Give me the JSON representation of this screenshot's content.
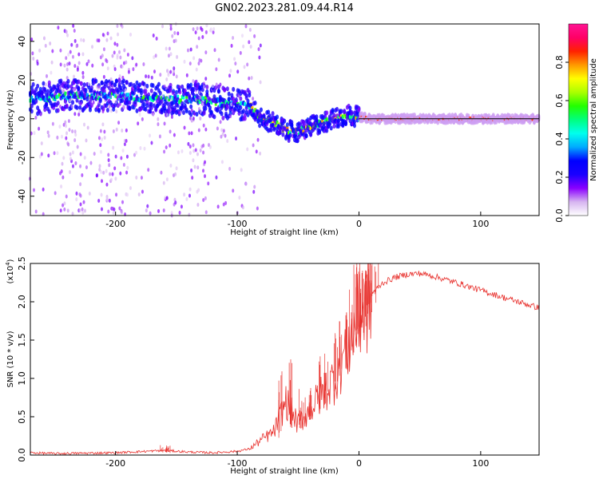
{
  "figure_title": "GN02.2023.281.09.44.R14",
  "chart_data": [
    {
      "type": "heatmap",
      "title": "",
      "xlabel": "Height of straight line (km)",
      "ylabel": "Frequency (Hz)",
      "xlim": [
        -270,
        148
      ],
      "ylim": [
        -50,
        49
      ],
      "x_ticks": [
        -200,
        -100,
        0,
        100
      ],
      "x_tick_labels": [
        "-200",
        "-100",
        "0",
        "100"
      ],
      "y_ticks": [
        40,
        20,
        0,
        -20,
        -40
      ],
      "y_tick_labels": [
        "40",
        "20",
        "0",
        "-20",
        "-40"
      ],
      "ridge": {
        "x": [
          -270,
          -240,
          -200,
          -160,
          -130,
          -110,
          -90,
          -80,
          -70,
          -60,
          -50,
          -40,
          -30,
          -20,
          -10,
          0,
          10,
          30,
          60,
          100,
          148
        ],
        "frequency": [
          10,
          12,
          12,
          10,
          10,
          8,
          7,
          0,
          -2,
          -6,
          -7,
          -4,
          -2,
          0,
          2,
          1,
          0,
          0,
          0,
          0,
          0
        ]
      },
      "colorbar": {
        "label": "Normalized spectral amplitude",
        "range": [
          0,
          1
        ],
        "ticks": [
          0.0,
          0.2,
          0.4,
          0.6,
          0.8
        ],
        "tick_labels": [
          "0.0",
          "0.2",
          "0.4",
          "0.6",
          "0.8"
        ],
        "colors": [
          "#ffffff",
          "#d6b4f0",
          "#8a00ff",
          "#1a00ff",
          "#0000ff",
          "#00aaff",
          "#00ffee",
          "#00ff7f",
          "#22ff00",
          "#aaff00",
          "#ffff00",
          "#ff9900",
          "#ff2200",
          "#ff0066",
          "#ff1493"
        ]
      }
    },
    {
      "type": "line",
      "title": "",
      "xlabel": "Height of straight line (km)",
      "ylabel": "SNR (10 * v/v)",
      "y_scale_label": "(x10",
      "y_scale_exp": "4",
      "color": "#e8322e",
      "xlim": [
        -270,
        148
      ],
      "ylim": [
        0,
        2.5
      ],
      "x_ticks": [
        -200,
        -100,
        0,
        100
      ],
      "x_tick_labels": [
        "-200",
        "-100",
        "0",
        "100"
      ],
      "y_ticks": [
        0.0,
        0.5,
        1.0,
        1.5,
        2.0,
        2.5
      ],
      "y_tick_labels": [
        "0.0",
        "0.5",
        "1.0",
        "1.5",
        "2.0",
        "2.5"
      ],
      "series": [
        {
          "name": "SNR",
          "x": [
            -270,
            -250,
            -200,
            -160,
            -140,
            -120,
            -100,
            -90,
            -80,
            -70,
            -60,
            -50,
            -40,
            -30,
            -20,
            -10,
            0,
            5,
            10,
            20,
            30,
            40,
            50,
            60,
            80,
            100,
            120,
            148
          ],
          "values": [
            0.03,
            0.02,
            0.03,
            0.06,
            0.04,
            0.03,
            0.05,
            0.08,
            0.2,
            0.3,
            0.7,
            0.4,
            0.6,
            0.8,
            1.0,
            1.4,
            1.8,
            1.9,
            2.1,
            2.25,
            2.32,
            2.36,
            2.37,
            2.34,
            2.25,
            2.15,
            2.05,
            1.92
          ]
        }
      ],
      "spikes": [
        {
          "x": -160,
          "amplitude": 0.05
        },
        {
          "x": -60,
          "amplitude": 0.45
        },
        {
          "x": -45,
          "amplitude": 0.3
        },
        {
          "x": -30,
          "amplitude": 0.35
        },
        {
          "x": -15,
          "amplitude": 0.4
        },
        {
          "x": -5,
          "amplitude": 0.5
        },
        {
          "x": 0,
          "amplitude": 0.6
        },
        {
          "x": 5,
          "amplitude": 0.5
        },
        {
          "x": 10,
          "amplitude": 0.3
        }
      ]
    }
  ]
}
